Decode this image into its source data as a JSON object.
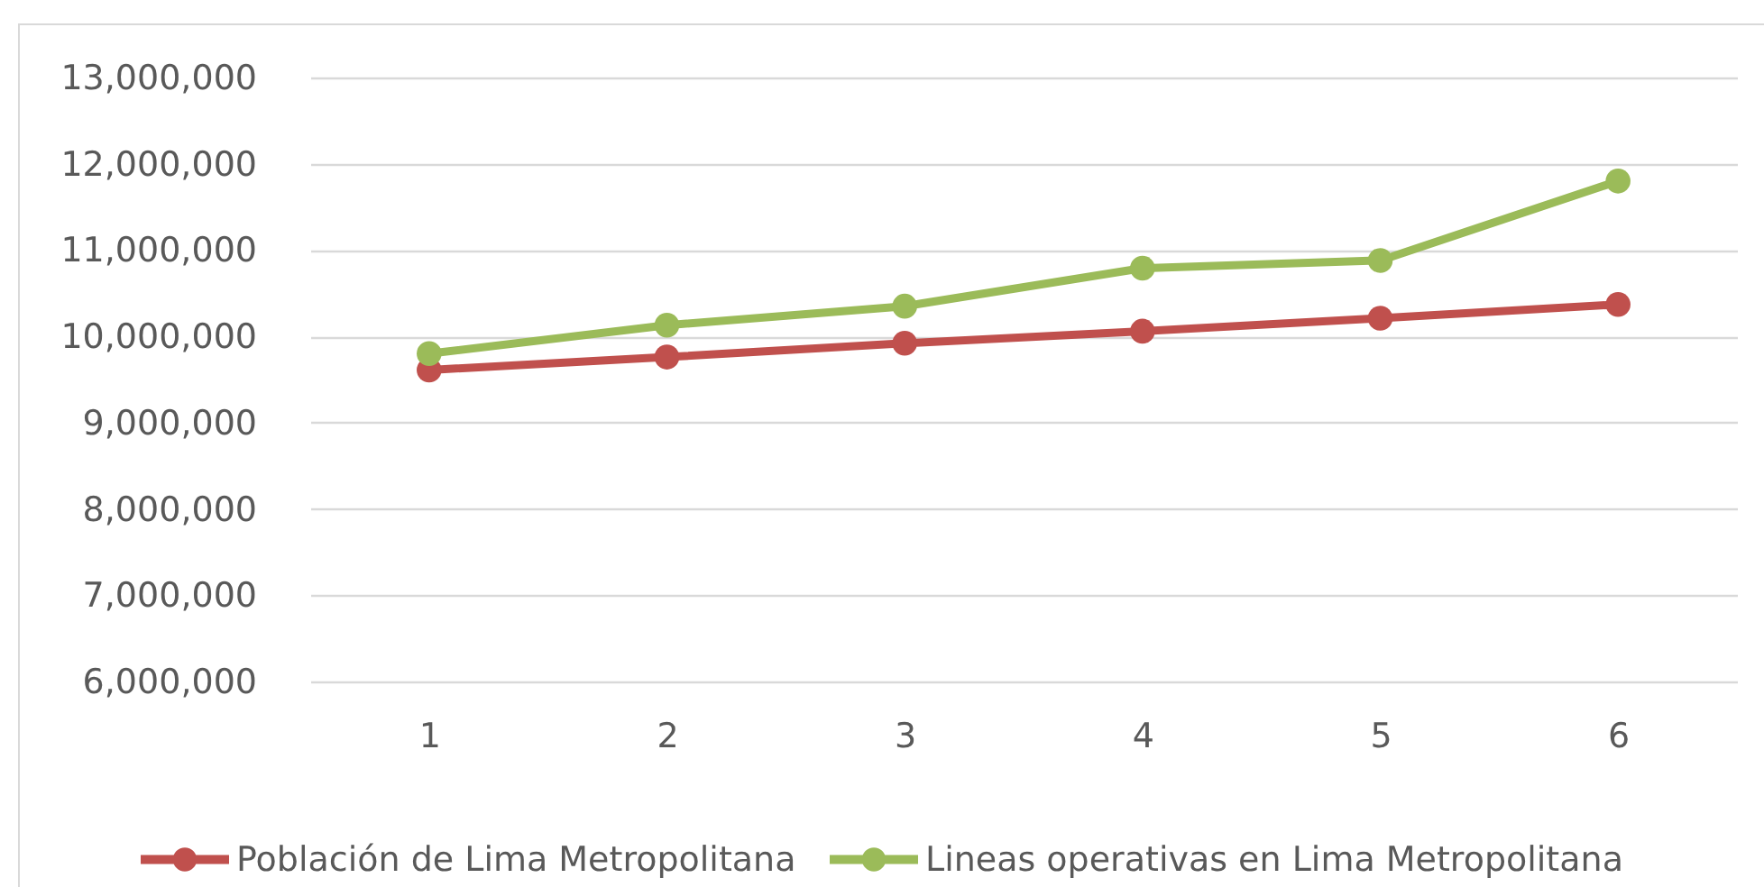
{
  "chart_data": {
    "type": "line",
    "categories": [
      "1",
      "2",
      "3",
      "4",
      "5",
      "6"
    ],
    "series": [
      {
        "name": "Población de Lima Metropolitana",
        "color": "#c0504d",
        "values": [
          9610000,
          9760000,
          9920000,
          10060000,
          10210000,
          10370000
        ]
      },
      {
        "name": "Lineas operativas en Lima Metropolitana",
        "color": "#9bbb59",
        "values": [
          9800000,
          10130000,
          10350000,
          10790000,
          10880000,
          11800000
        ]
      }
    ],
    "ylim": [
      6000000,
      13000000
    ],
    "yticks": [
      {
        "value": 6000000,
        "label": "6,000,000"
      },
      {
        "value": 7000000,
        "label": "7,000,000"
      },
      {
        "value": 8000000,
        "label": "8,000,000"
      },
      {
        "value": 9000000,
        "label": "9,000,000"
      },
      {
        "value": 10000000,
        "label": "10,000,000"
      },
      {
        "value": 11000000,
        "label": "11,000,000"
      },
      {
        "value": 12000000,
        "label": "12,000,000"
      },
      {
        "value": 13000000,
        "label": "13,000,000"
      }
    ],
    "grid": "y",
    "legend": "bottom",
    "marker": "circle",
    "line_style": "solid"
  }
}
